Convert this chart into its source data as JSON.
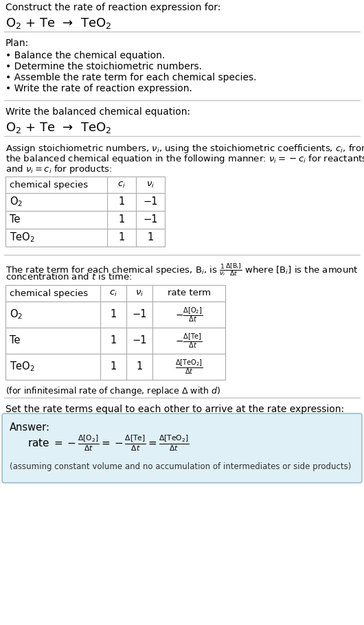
{
  "bg_color": "#ffffff",
  "text_color": "#000000",
  "section1_title": "Construct the rate of reaction expression for:",
  "section1_eq": "O$_2$ + Te  →  TeO$_2$",
  "section2_title": "Plan:",
  "section2_bullets": [
    "• Balance the chemical equation.",
    "• Determine the stoichiometric numbers.",
    "• Assemble the rate term for each chemical species.",
    "• Write the rate of reaction expression."
  ],
  "section3_title": "Write the balanced chemical equation:",
  "section3_eq": "O$_2$ + Te  →  TeO$_2$",
  "section4_intro_lines": [
    "Assign stoichiometric numbers, $\\nu_i$, using the stoichiometric coefficients, $c_i$, from",
    "the balanced chemical equation in the following manner: $\\nu_i = -c_i$ for reactants",
    "and $\\nu_i = c_i$ for products:"
  ],
  "table1_headers": [
    "chemical species",
    "$c_i$",
    "$\\nu_i$"
  ],
  "table1_rows": [
    [
      "O$_2$",
      "1",
      "−1"
    ],
    [
      "Te",
      "1",
      "−1"
    ],
    [
      "TeO$_2$",
      "1",
      "1"
    ]
  ],
  "section5_intro_lines": [
    "The rate term for each chemical species, B$_i$, is $\\frac{1}{\\nu_i}\\frac{\\Delta[\\mathrm{B}_i]}{\\Delta t}$ where [B$_i$] is the amount",
    "concentration and $t$ is time:"
  ],
  "table2_headers": [
    "chemical species",
    "$c_i$",
    "$\\nu_i$",
    "rate term"
  ],
  "table2_rows": [
    [
      "O$_2$",
      "1",
      "−1",
      "$-\\frac{\\Delta[\\mathrm{O_2}]}{\\Delta t}$"
    ],
    [
      "Te",
      "1",
      "−1",
      "$-\\frac{\\Delta[\\mathrm{Te}]}{\\Delta t}$"
    ],
    [
      "TeO$_2$",
      "1",
      "1",
      "$\\frac{\\Delta[\\mathrm{TeO_2}]}{\\Delta t}$"
    ]
  ],
  "infinitesimal_note": "(for infinitesimal rate of change, replace Δ with $d$)",
  "section6_title": "Set the rate terms equal to each other to arrive at the rate expression:",
  "answer_label": "Answer:",
  "answer_eq": "rate $= -\\frac{\\Delta[\\mathrm{O_2}]}{\\Delta t} = -\\frac{\\Delta[\\mathrm{Te}]}{\\Delta t} = \\frac{\\Delta[\\mathrm{TeO_2}]}{\\Delta t}$",
  "answer_note": "(assuming constant volume and no accumulation of intermediates or side products)",
  "answer_box_color": "#dff0f7",
  "answer_box_border": "#9bbfcc"
}
